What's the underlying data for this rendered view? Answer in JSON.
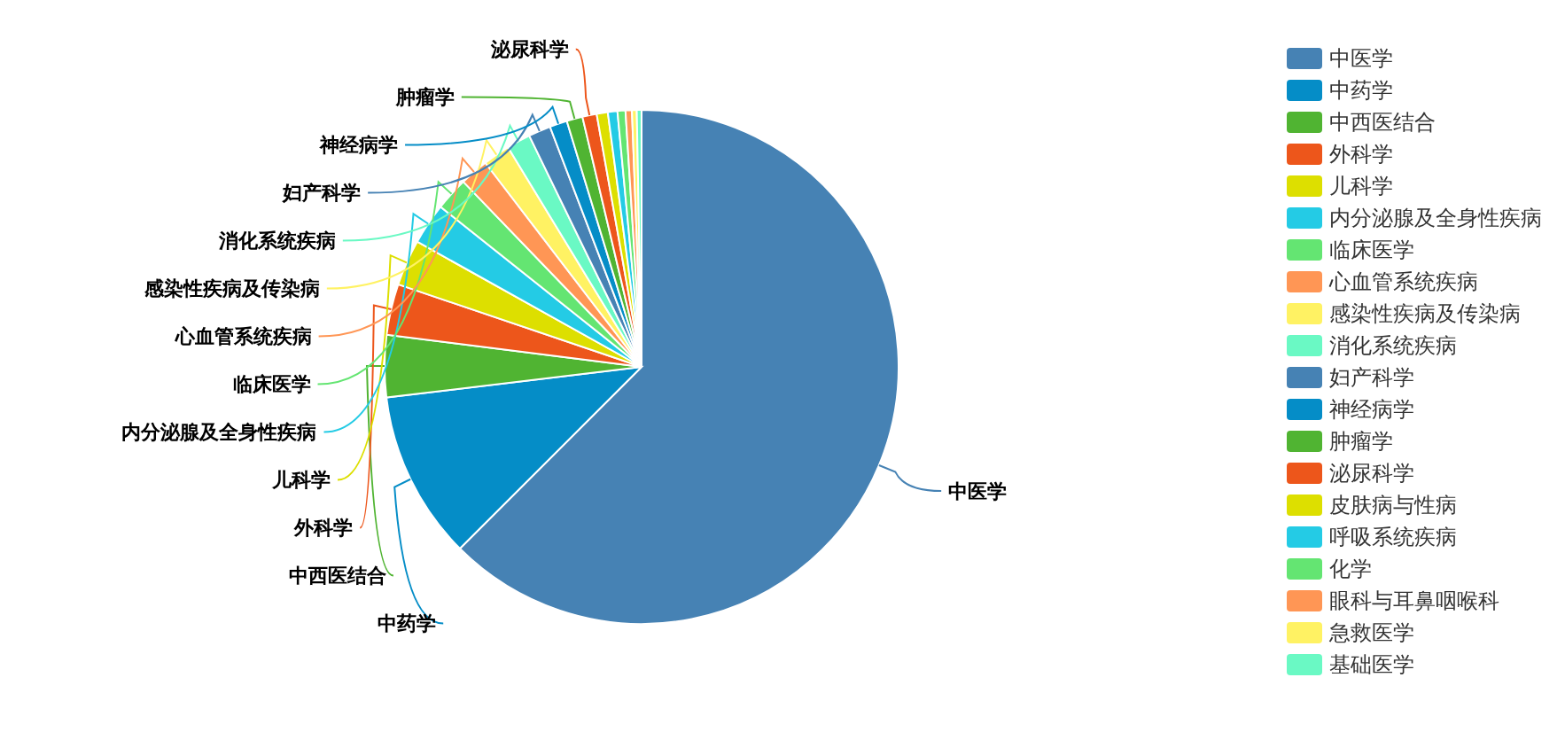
{
  "chart_data": {
    "type": "pie",
    "categories": [
      "中医学",
      "中药学",
      "中西医结合",
      "外科学",
      "儿科学",
      "内分泌腺及全身性疾病",
      "临床医学",
      "心血管系统疾病",
      "感染性疾病及传染病",
      "消化系统疾病",
      "妇产科学",
      "神经病学",
      "肿瘤学",
      "泌尿科学",
      "皮肤病与性病",
      "呼吸系统疾病",
      "化学",
      "眼科与耳鼻咽喉科",
      "急救医学",
      "基础医学"
    ],
    "values": [
      62.5,
      10.6,
      3.9,
      3.2,
      2.9,
      2.6,
      2.1,
      1.8,
      1.7,
      1.5,
      1.4,
      1.1,
      1.0,
      0.9,
      0.7,
      0.6,
      0.5,
      0.4,
      0.3,
      0.3
    ],
    "colors": [
      "#4682b4",
      "#058dc7",
      "#50b432",
      "#ed561b",
      "#dddf00",
      "#24cbe5",
      "#64e572",
      "#ff9655",
      "#fff263",
      "#6af9c4",
      "#4682b4",
      "#058dc7",
      "#50b432",
      "#ed561b",
      "#dddf00",
      "#24cbe5",
      "#64e572",
      "#ff9655",
      "#fff263",
      "#6af9c4"
    ],
    "legend": "right"
  }
}
